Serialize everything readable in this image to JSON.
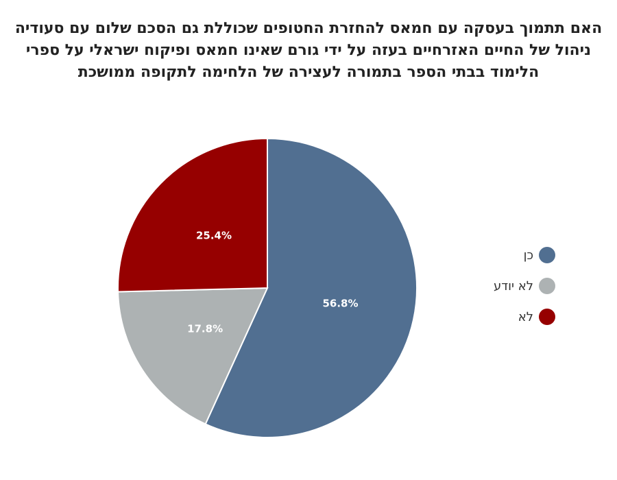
{
  "chart_data": {
    "type": "pie",
    "title_lines": [
      "האם תתמוך בעסקה עם חמאס להחזרת החטופים שכוללת גם הסכם שלום עם סעודיה",
      "ניהול של החיים האזרחיים בעזה על ידי גורם שאינו חמאס ופיקוח ישראלי על ספרי",
      "הלימוד בבתי הספר בתמורה לעצירה של הלחימה לתקופה ממושכת"
    ],
    "slices": [
      {
        "label": "כן",
        "value": 56.8,
        "display": "56.8%",
        "color": "#516f91"
      },
      {
        "label": "לא יודע",
        "value": 17.8,
        "display": "17.8%",
        "color": "#adb2b3"
      },
      {
        "label": "לא",
        "value": 25.4,
        "display": "25.4%",
        "color": "#960000"
      }
    ],
    "legend_position": "right",
    "start_angle": "12 o'clock",
    "direction": "clockwise"
  }
}
